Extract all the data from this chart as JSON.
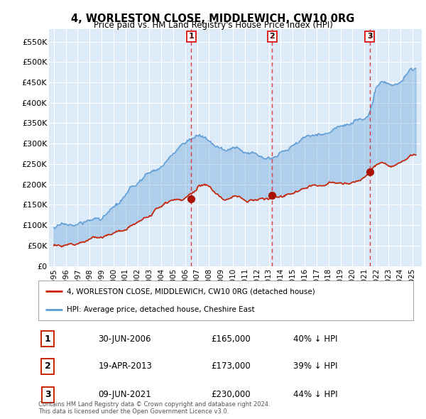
{
  "title": "4, WORLESTON CLOSE, MIDDLEWICH, CW10 0RG",
  "subtitle": "Price paid vs. HM Land Registry's House Price Index (HPI)",
  "background_color": "#ddeaf7",
  "plot_bg_color": "#ddeaf7",
  "ylim": [
    0,
    580000
  ],
  "yticks": [
    0,
    50000,
    100000,
    150000,
    200000,
    250000,
    300000,
    350000,
    400000,
    450000,
    500000,
    550000
  ],
  "ytick_labels": [
    "£0",
    "£50K",
    "£100K",
    "£150K",
    "£200K",
    "£250K",
    "£300K",
    "£350K",
    "£400K",
    "£450K",
    "£500K",
    "£550K"
  ],
  "red_line_color": "#cc2200",
  "blue_line_color": "#5b9bd5",
  "vline_color": "#dd2222",
  "marker_color": "#aa1100",
  "sale_dates": [
    2006.5,
    2013.29,
    2021.44
  ],
  "sale_prices": [
    165000,
    173000,
    230000
  ],
  "sale_labels": [
    "1",
    "2",
    "3"
  ],
  "legend_label_red": "4, WORLESTON CLOSE, MIDDLEWICH, CW10 0RG (detached house)",
  "legend_label_blue": "HPI: Average price, detached house, Cheshire East",
  "table_data": [
    [
      "1",
      "30-JUN-2006",
      "£165,000",
      "40% ↓ HPI"
    ],
    [
      "2",
      "19-APR-2013",
      "£173,000",
      "39% ↓ HPI"
    ],
    [
      "3",
      "09-JUN-2021",
      "£230,000",
      "44% ↓ HPI"
    ]
  ],
  "footer": "Contains HM Land Registry data © Crown copyright and database right 2024.\nThis data is licensed under the Open Government Licence v3.0."
}
